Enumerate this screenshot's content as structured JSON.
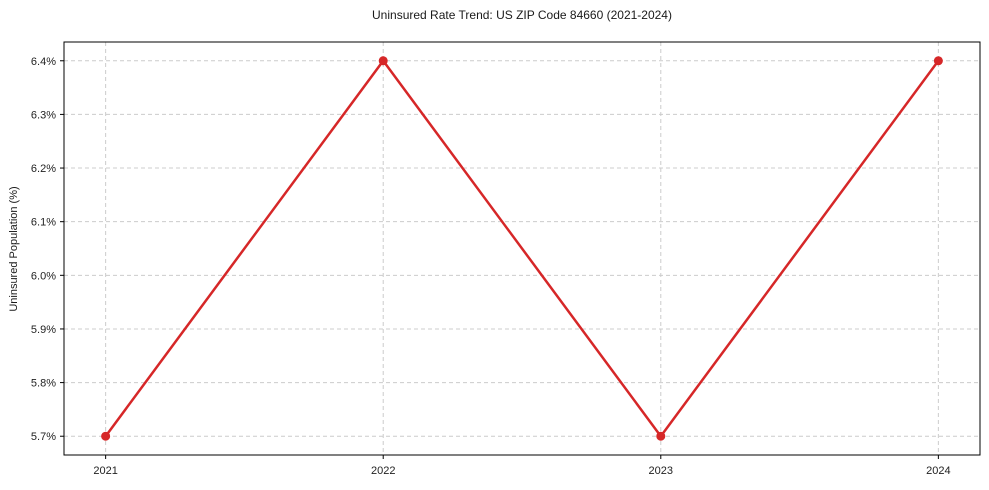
{
  "chart_data": {
    "type": "line",
    "title": "Uninsured Rate Trend: US ZIP Code 84660 (2021-2024)",
    "xlabel": "",
    "ylabel": "Uninsured Population (%)",
    "x": [
      2021,
      2022,
      2023,
      2024
    ],
    "x_tick_labels": [
      "2021",
      "2022",
      "2023",
      "2024"
    ],
    "series": [
      {
        "name": "Uninsured Rate",
        "values": [
          5.7,
          6.4,
          5.7,
          6.4
        ]
      }
    ],
    "y_ticks": [
      5.7,
      5.8,
      5.9,
      6.0,
      6.1,
      6.2,
      6.3,
      6.4
    ],
    "y_tick_labels": [
      "5.7%",
      "5.8%",
      "5.9%",
      "6.0%",
      "6.1%",
      "6.2%",
      "6.3%",
      "6.4%"
    ],
    "ylim": [
      5.665,
      6.435
    ],
    "xlim": [
      2020.85,
      2024.15
    ],
    "grid": true,
    "grid_style": "dashed",
    "legend": false,
    "line_color": "#d62728",
    "grid_color": "#cccccc",
    "axis_color": "#000000",
    "tick_label_color": "#222222",
    "marker": "circle"
  }
}
